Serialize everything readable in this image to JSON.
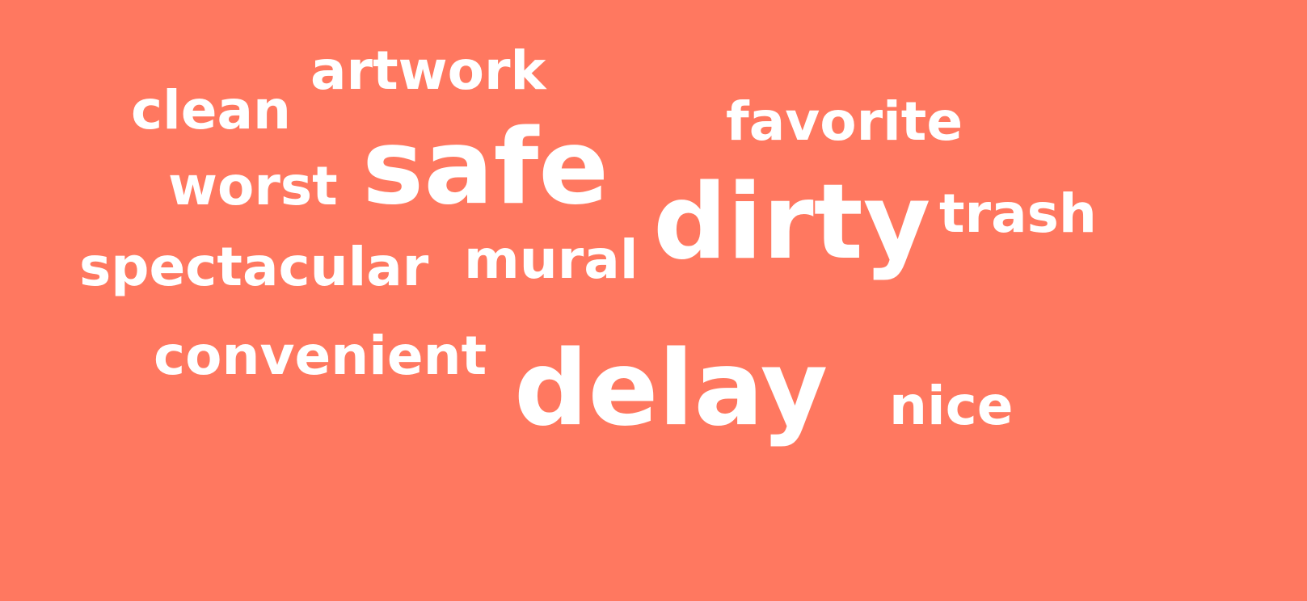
{
  "background_color": "#ff7860",
  "text_color": "#ffffff",
  "words": [
    {
      "id": "artwork",
      "text": "artwork"
    },
    {
      "id": "clean",
      "text": "clean"
    },
    {
      "id": "favorite",
      "text": "favorite"
    },
    {
      "id": "worst",
      "text": "worst"
    },
    {
      "id": "safe",
      "text": "safe"
    },
    {
      "id": "dirty",
      "text": "dirty"
    },
    {
      "id": "trash",
      "text": "trash"
    },
    {
      "id": "spectacular",
      "text": "spectacular"
    },
    {
      "id": "mural",
      "text": "mural"
    },
    {
      "id": "convenient",
      "text": "convenient"
    },
    {
      "id": "delay",
      "text": "delay"
    },
    {
      "id": "nice",
      "text": "nice"
    }
  ]
}
